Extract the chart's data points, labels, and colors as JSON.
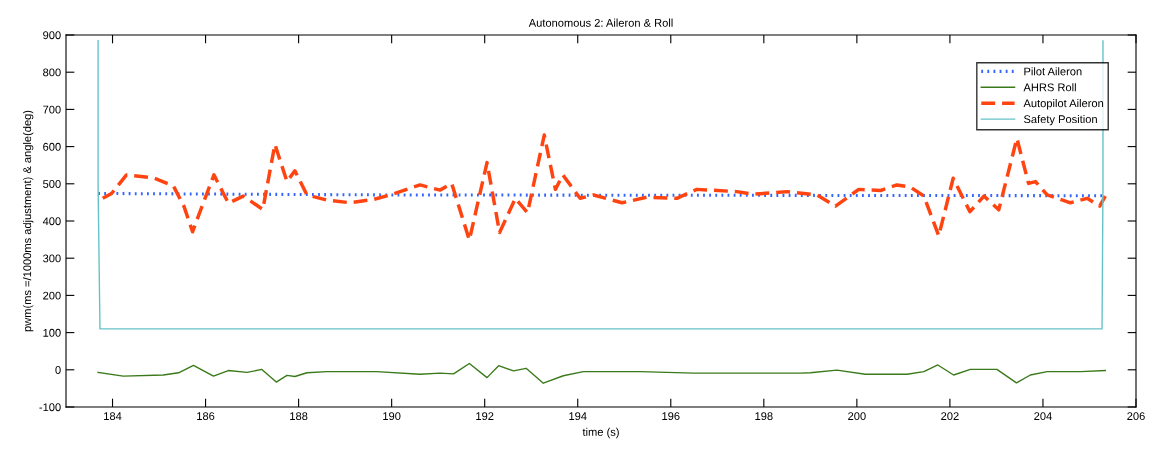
{
  "chart_data": {
    "type": "line",
    "title": "Autonomous 2: Aileron & Roll",
    "xlabel": "time (s)",
    "ylabel": "pwm(ms =/1000ms adjustment) & angle(deg)",
    "xlim": [
      183,
      206
    ],
    "xticks": [
      184,
      186,
      188,
      190,
      192,
      194,
      196,
      198,
      200,
      202,
      204,
      206
    ],
    "ylim": [
      -100,
      900
    ],
    "yticks": [
      -100,
      0,
      100,
      200,
      300,
      400,
      500,
      600,
      700,
      800,
      900
    ],
    "grid": false,
    "legend": "top right",
    "series": [
      {
        "name": "Pilot Aileron",
        "color": "#3366ff",
        "line_style": "dotted",
        "x": [
          183.69,
          190.0,
          205.3
        ],
        "values": [
          474,
          470,
          468
        ]
      },
      {
        "name": "AHRS Roll",
        "color": "#3a7a1a",
        "line_style": "solid",
        "x": [
          183.69,
          184.23,
          185.09,
          185.42,
          185.74,
          186.17,
          186.49,
          186.89,
          187.21,
          187.52,
          187.75,
          187.92,
          188.18,
          188.61,
          189.68,
          190.61,
          191.04,
          191.33,
          191.67,
          192.05,
          192.3,
          192.62,
          192.89,
          193.26,
          193.69,
          194.12,
          195.34,
          196.49,
          197.92,
          198.79,
          199.0,
          199.57,
          200.18,
          201.08,
          201.44,
          201.74,
          202.08,
          202.44,
          203.01,
          203.43,
          203.73,
          204.09,
          204.81,
          205.34
        ],
        "values": [
          -7,
          -17,
          -14,
          -8,
          12,
          -17,
          -2,
          -7,
          1,
          -33,
          -15,
          -18,
          -8,
          -5,
          -5,
          -12,
          -9,
          -11,
          17,
          -21,
          11,
          -3,
          4,
          -36,
          -16,
          -5,
          -5,
          -9,
          -9,
          -9,
          -8,
          -1,
          -12,
          -12,
          -5,
          13,
          -14,
          1,
          1,
          -35,
          -14,
          -5,
          -5,
          -2
        ]
      },
      {
        "name": "Autopilot Aileron",
        "color": "#ff4411",
        "line_style": "dashed",
        "x": [
          183.79,
          183.98,
          184.3,
          184.88,
          185.31,
          185.54,
          185.72,
          185.92,
          186.18,
          186.49,
          186.81,
          187.23,
          187.49,
          187.75,
          187.92,
          188.18,
          188.61,
          189.11,
          189.61,
          189.97,
          190.61,
          191.04,
          191.29,
          191.67,
          192.05,
          192.32,
          192.66,
          192.92,
          193.28,
          193.52,
          193.68,
          194.05,
          194.34,
          194.95,
          195.49,
          196.13,
          196.56,
          197.42,
          197.78,
          198.5,
          199.14,
          199.54,
          200.04,
          200.51,
          200.86,
          201.15,
          201.44,
          201.76,
          202.07,
          202.43,
          202.73,
          203.05,
          203.44,
          203.69,
          203.84,
          204.09,
          204.59,
          204.95,
          205.22,
          205.34
        ],
        "values": [
          461,
          474,
          524,
          516,
          494,
          438,
          371,
          438,
          524,
          448,
          467,
          431,
          606,
          506,
          535,
          470,
          456,
          449,
          458,
          470,
          497,
          483,
          501,
          349,
          557,
          369,
          461,
          422,
          631,
          485,
          524,
          461,
          470,
          449,
          464,
          461,
          485,
          479,
          472,
          479,
          470,
          440,
          485,
          482,
          497,
          491,
          467,
          360,
          515,
          425,
          467,
          430,
          622,
          501,
          506,
          470,
          449,
          461,
          440,
          467
        ]
      },
      {
        "name": "Safety Position",
        "color": "#66c2c8",
        "line_style": "solid",
        "x": [
          183.69,
          183.69,
          183.73,
          205.27,
          205.29,
          205.29
        ],
        "values": [
          885,
          495,
          110,
          110,
          497,
          884
        ]
      }
    ]
  }
}
